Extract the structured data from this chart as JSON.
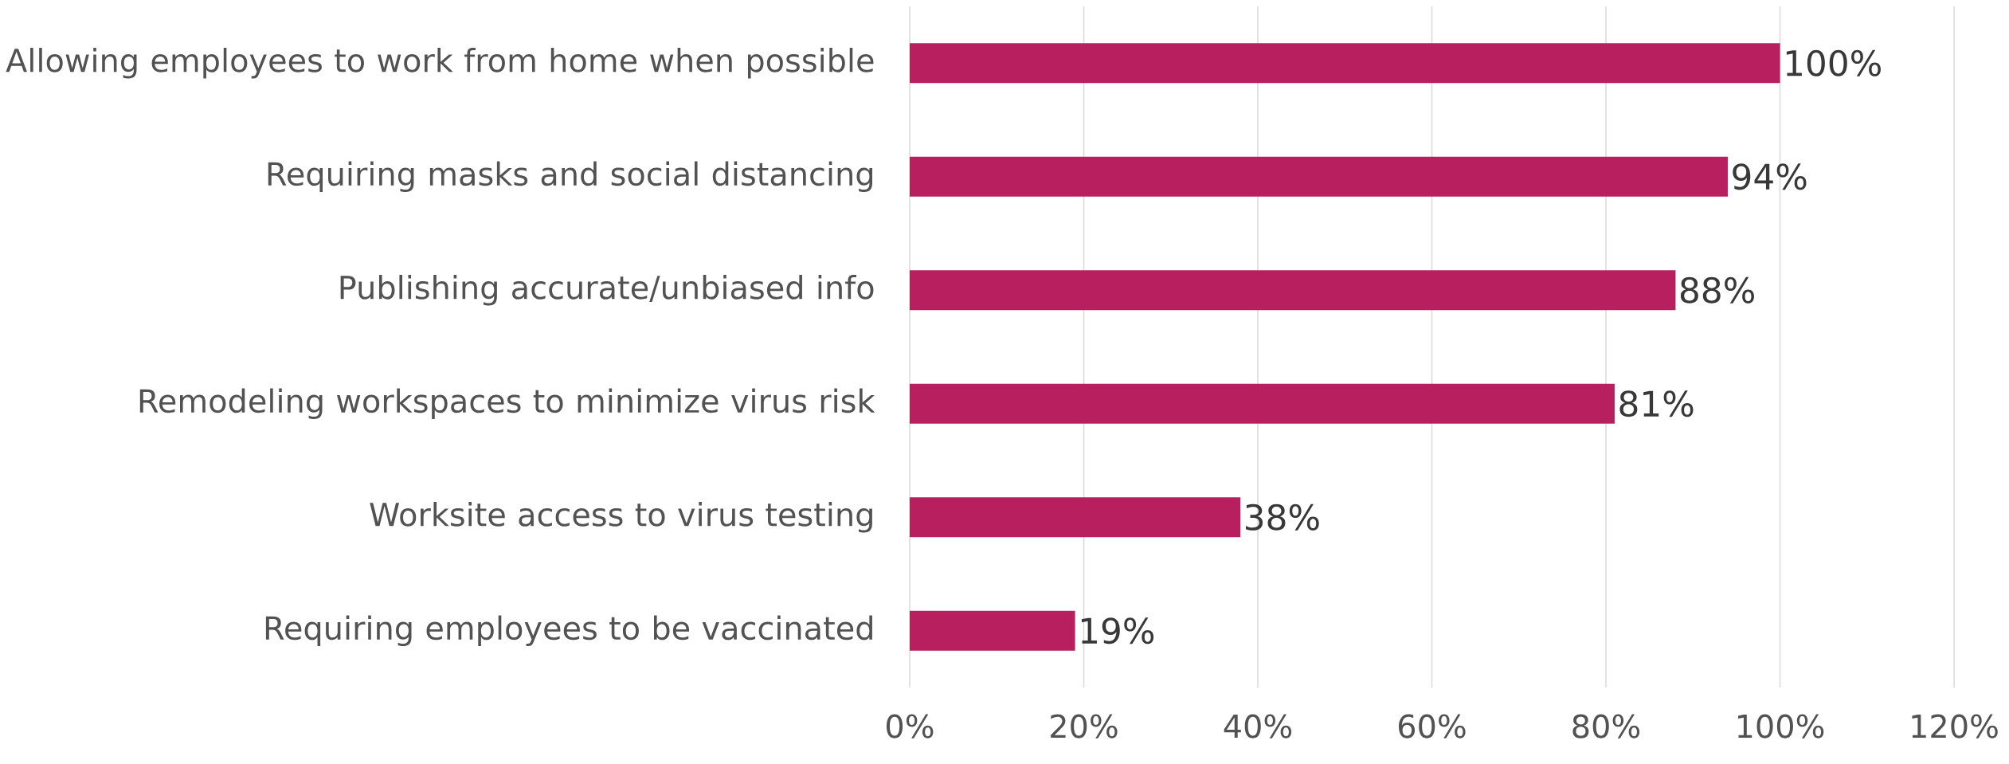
{
  "chart_data": {
    "type": "bar",
    "orientation": "horizontal",
    "categories": [
      "Allowing employees to work from home when possible",
      "Requiring masks and social distancing",
      "Publishing accurate/unbiased info",
      "Remodeling workspaces to minimize virus risk",
      "Worksite access to virus testing",
      "Requiring employees to be vaccinated"
    ],
    "values": [
      100,
      94,
      88,
      81,
      38,
      19
    ],
    "value_labels": [
      "100%",
      "94%",
      "88%",
      "81%",
      "38%",
      "19%"
    ],
    "color": "#b71f5f",
    "xlim": [
      0,
      120
    ],
    "xticks": [
      {
        "value": 0,
        "label": "0%"
      },
      {
        "value": 20,
        "label": "20%"
      },
      {
        "value": 40,
        "label": "40%"
      },
      {
        "value": 60,
        "label": "60%"
      },
      {
        "value": 80,
        "label": "80%"
      },
      {
        "value": 100,
        "label": "100%"
      },
      {
        "value": 120,
        "label": "120%"
      }
    ],
    "grid": "x"
  }
}
